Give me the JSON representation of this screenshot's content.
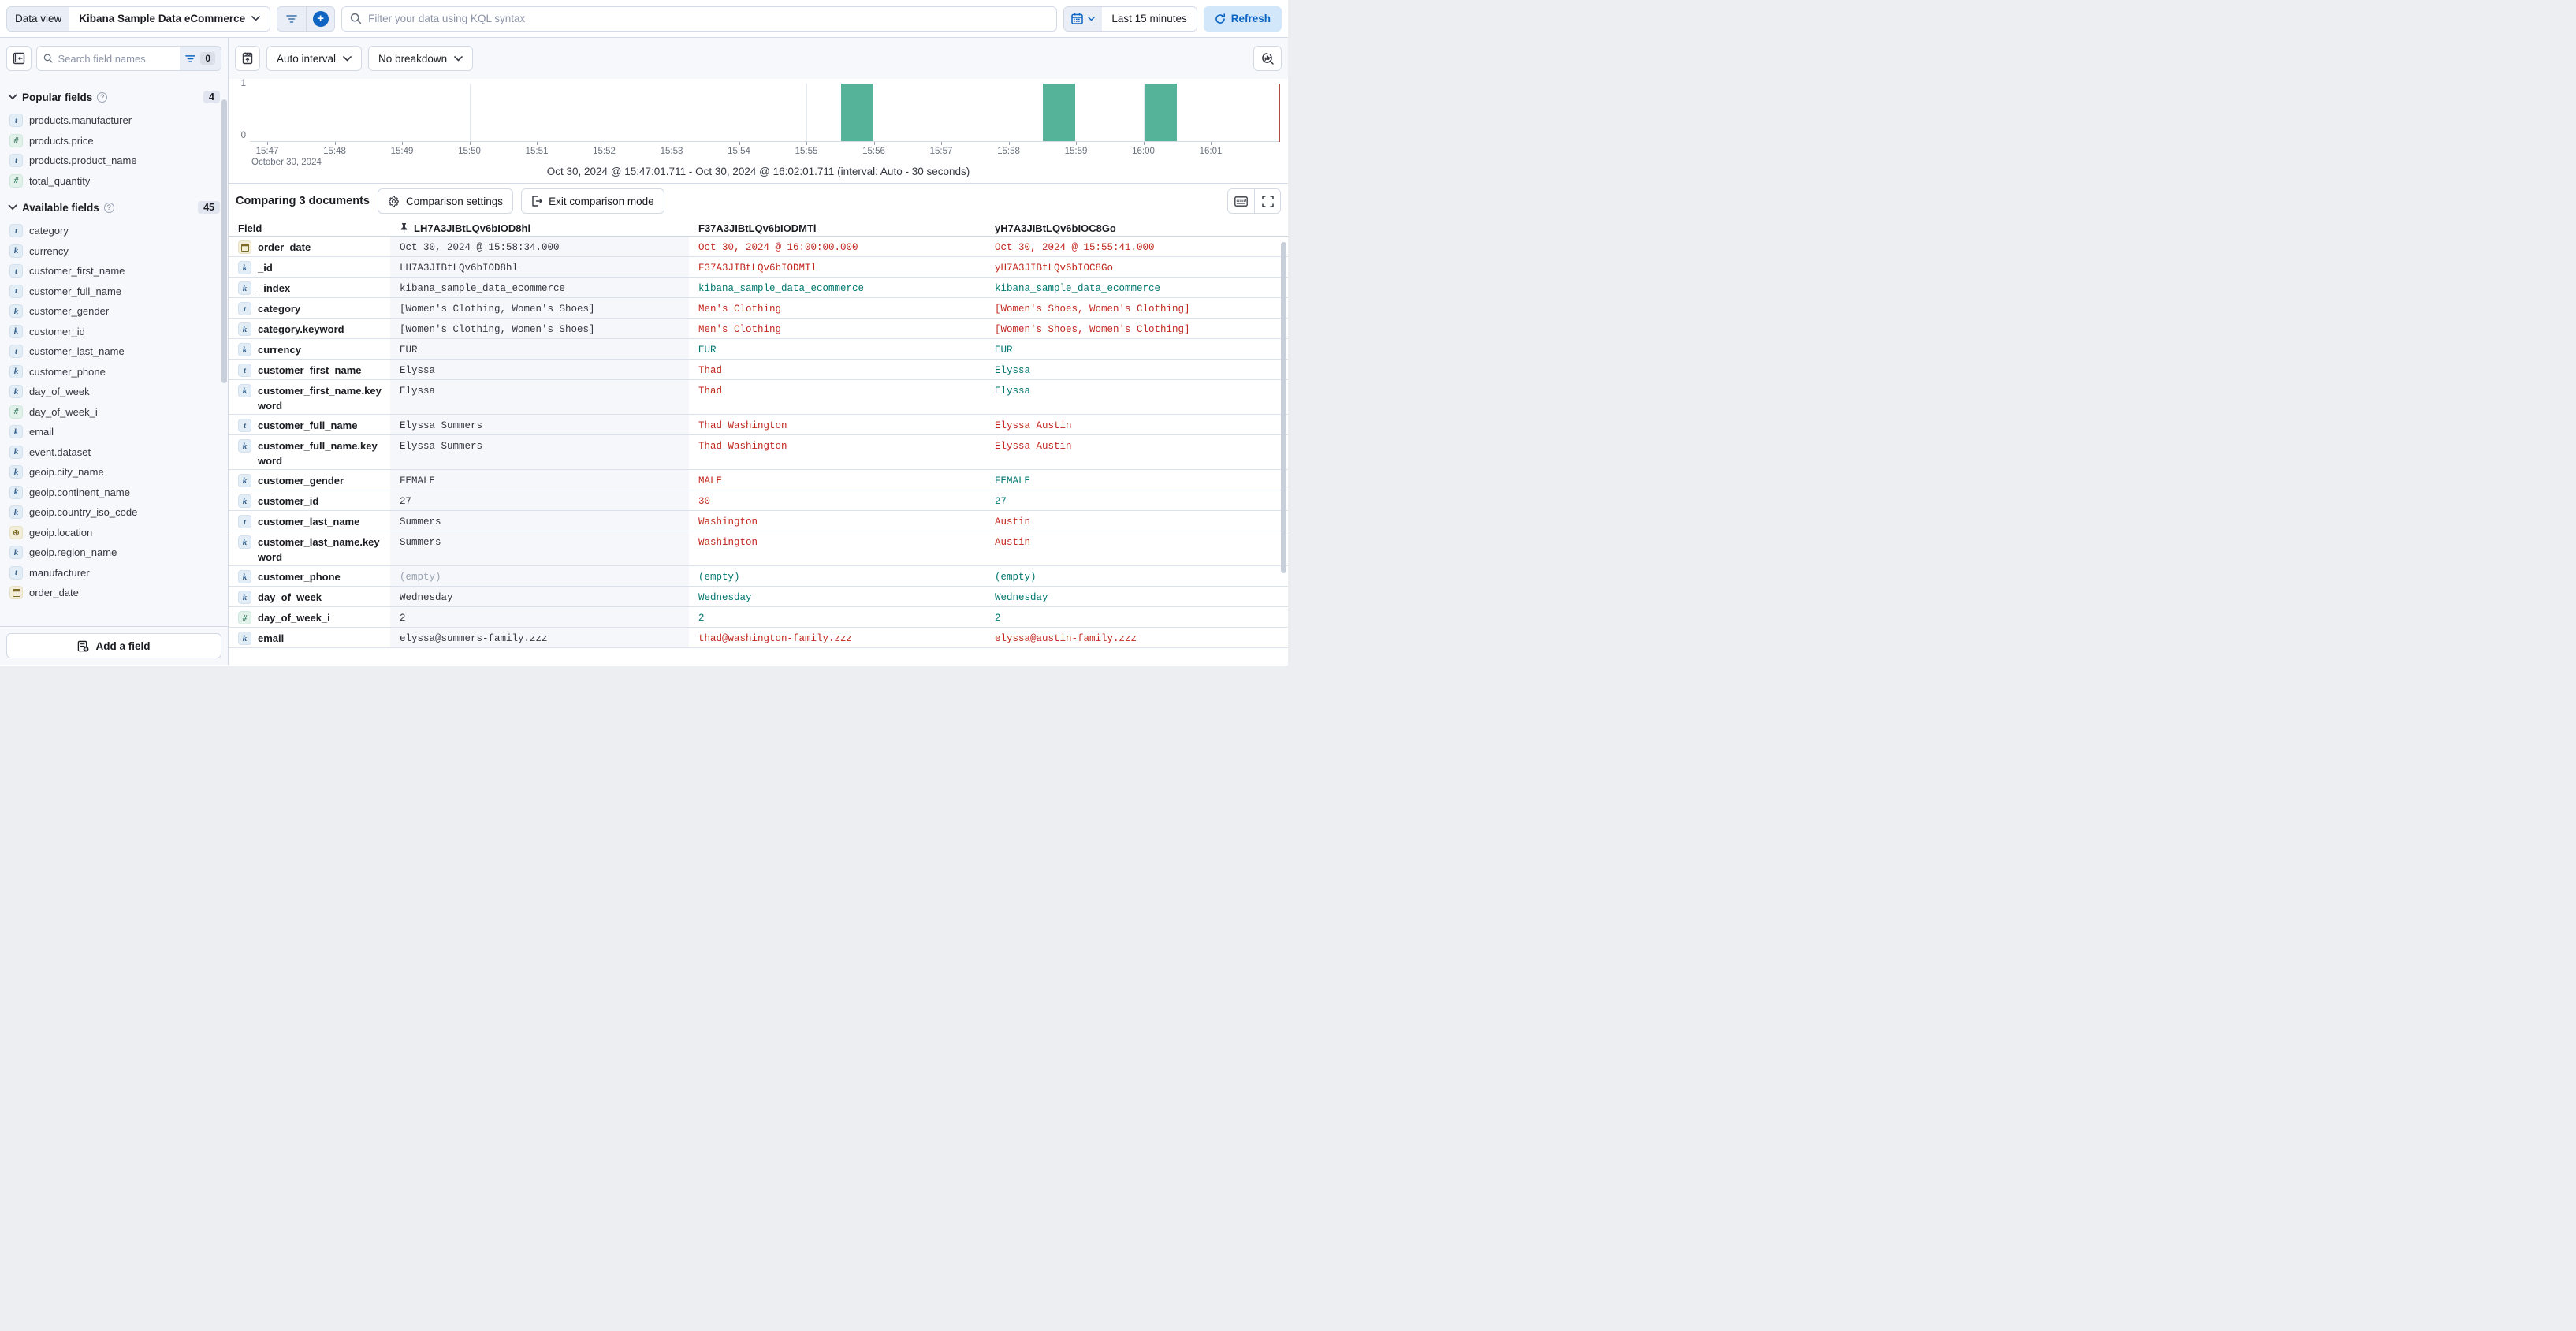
{
  "top_bar": {
    "data_view_label": "Data view",
    "data_view_value": "Kibana Sample Data eCommerce",
    "kql_placeholder": "Filter your data using KQL syntax",
    "time_range": "Last 15 minutes",
    "refresh_label": "Refresh"
  },
  "sidebar": {
    "search_placeholder": "Search field names",
    "filter_count": "0",
    "sections": [
      {
        "label": "Popular fields",
        "count": "4",
        "items": [
          {
            "name": "products.manufacturer",
            "type": "t"
          },
          {
            "name": "products.price",
            "type": "num"
          },
          {
            "name": "products.product_name",
            "type": "t"
          },
          {
            "name": "total_quantity",
            "type": "num"
          }
        ]
      },
      {
        "label": "Available fields",
        "count": "45",
        "items": [
          {
            "name": "category",
            "type": "t"
          },
          {
            "name": "currency",
            "type": "k"
          },
          {
            "name": "customer_first_name",
            "type": "t"
          },
          {
            "name": "customer_full_name",
            "type": "t"
          },
          {
            "name": "customer_gender",
            "type": "k"
          },
          {
            "name": "customer_id",
            "type": "k"
          },
          {
            "name": "customer_last_name",
            "type": "t"
          },
          {
            "name": "customer_phone",
            "type": "k"
          },
          {
            "name": "day_of_week",
            "type": "k"
          },
          {
            "name": "day_of_week_i",
            "type": "num"
          },
          {
            "name": "email",
            "type": "k"
          },
          {
            "name": "event.dataset",
            "type": "k"
          },
          {
            "name": "geoip.city_name",
            "type": "k"
          },
          {
            "name": "geoip.continent_name",
            "type": "k"
          },
          {
            "name": "geoip.country_iso_code",
            "type": "k"
          },
          {
            "name": "geoip.location",
            "type": "geo"
          },
          {
            "name": "geoip.region_name",
            "type": "k"
          },
          {
            "name": "manufacturer",
            "type": "t"
          },
          {
            "name": "order_date",
            "type": "date"
          }
        ]
      }
    ],
    "add_field_label": "Add a field"
  },
  "chart": {
    "interval_label": "Auto interval",
    "breakdown_label": "No breakdown",
    "y_ticks": [
      "1",
      "0"
    ],
    "x_ticks": [
      "15:47",
      "15:48",
      "15:49",
      "15:50",
      "15:51",
      "15:52",
      "15:53",
      "15:54",
      "15:55",
      "15:56",
      "15:57",
      "15:58",
      "15:59",
      "16:00",
      "16:01"
    ],
    "x_date_label": "October 30, 2024",
    "gridline_ticks": [
      "15:50",
      "15:55",
      "16:00"
    ],
    "caption": "Oct 30, 2024 @ 15:47:01.711 - Oct 30, 2024 @ 16:02:01.711 (interval: Auto - 30 seconds)"
  },
  "chart_data": {
    "type": "bar",
    "title": "Document count histogram",
    "x_range": [
      "15:47:00",
      "16:02:00"
    ],
    "interval_seconds": 30,
    "ylim": [
      0,
      1
    ],
    "buckets": [
      {
        "time": "15:55:30",
        "count": 1
      },
      {
        "time": "15:58:30",
        "count": 1
      },
      {
        "time": "16:00:00",
        "count": 1
      }
    ],
    "bar_color": "#54b399",
    "end_marker_time": "16:02:00",
    "end_marker_color": "#ad4a45"
  },
  "comparison": {
    "title": "Comparing 3 documents",
    "settings_label": "Comparison settings",
    "exit_label": "Exit comparison mode"
  },
  "table": {
    "field_header": "Field",
    "doc_headers": [
      {
        "id": "LH7A3JIBtLQv6bIOD8hl",
        "pinned": true
      },
      {
        "id": "F37A3JIBtLQv6bIODMTl",
        "pinned": false
      },
      {
        "id": "yH7A3JIBtLQv6bIOC8Go",
        "pinned": false
      }
    ],
    "rows": [
      {
        "field": "order_date",
        "type": "date",
        "wrap": false,
        "cells": [
          {
            "text": "Oct 30, 2024 @ 15:58:34.000",
            "status": "base"
          },
          {
            "text": "Oct 30, 2024 @ 16:00:00.000",
            "status": "diff"
          },
          {
            "text": "Oct 30, 2024 @ 15:55:41.000",
            "status": "diff"
          }
        ]
      },
      {
        "field": "_id",
        "type": "k",
        "wrap": false,
        "cells": [
          {
            "text": "LH7A3JIBtLQv6bIOD8hl",
            "status": "base"
          },
          {
            "text": "F37A3JIBtLQv6bIODMTl",
            "status": "diff"
          },
          {
            "text": "yH7A3JIBtLQv6bIOC8Go",
            "status": "diff"
          }
        ]
      },
      {
        "field": "_index",
        "type": "k",
        "wrap": false,
        "cells": [
          {
            "text": "kibana_sample_data_ecommerce",
            "status": "base"
          },
          {
            "text": "kibana_sample_data_ecommerce",
            "status": "match"
          },
          {
            "text": "kibana_sample_data_ecommerce",
            "status": "match"
          }
        ]
      },
      {
        "field": "category",
        "type": "t",
        "wrap": false,
        "cells": [
          {
            "text": "[Women's Clothing, Women's Shoes]",
            "status": "base"
          },
          {
            "text": "Men's Clothing",
            "status": "diff"
          },
          {
            "text": "[Women's Shoes, Women's Clothing]",
            "status": "diff"
          }
        ]
      },
      {
        "field": "category.keyword",
        "type": "k",
        "wrap": false,
        "cells": [
          {
            "text": "[Women's Clothing, Women's Shoes]",
            "status": "base"
          },
          {
            "text": "Men's Clothing",
            "status": "diff"
          },
          {
            "text": "[Women's Shoes, Women's Clothing]",
            "status": "diff"
          }
        ]
      },
      {
        "field": "currency",
        "type": "k",
        "wrap": false,
        "cells": [
          {
            "text": "EUR",
            "status": "base"
          },
          {
            "text": "EUR",
            "status": "match"
          },
          {
            "text": "EUR",
            "status": "match"
          }
        ]
      },
      {
        "field": "customer_first_name",
        "type": "t",
        "wrap": false,
        "cells": [
          {
            "text": "Elyssa",
            "status": "base"
          },
          {
            "text": "Thad",
            "status": "diff"
          },
          {
            "text": "Elyssa",
            "status": "match"
          }
        ]
      },
      {
        "field": "customer_first_name.keyword",
        "type": "k",
        "wrap": true,
        "cells": [
          {
            "text": "Elyssa",
            "status": "base"
          },
          {
            "text": "Thad",
            "status": "diff"
          },
          {
            "text": "Elyssa",
            "status": "match"
          }
        ]
      },
      {
        "field": "customer_full_name",
        "type": "t",
        "wrap": false,
        "cells": [
          {
            "text": "Elyssa Summers",
            "status": "base"
          },
          {
            "text": "Thad Washington",
            "status": "diff"
          },
          {
            "text": "Elyssa Austin",
            "status": "diff"
          }
        ]
      },
      {
        "field": "customer_full_name.keyword",
        "type": "k",
        "wrap": true,
        "cells": [
          {
            "text": "Elyssa Summers",
            "status": "base"
          },
          {
            "text": "Thad Washington",
            "status": "diff"
          },
          {
            "text": "Elyssa Austin",
            "status": "diff"
          }
        ]
      },
      {
        "field": "customer_gender",
        "type": "k",
        "wrap": false,
        "cells": [
          {
            "text": "FEMALE",
            "status": "base"
          },
          {
            "text": "MALE",
            "status": "diff"
          },
          {
            "text": "FEMALE",
            "status": "match"
          }
        ]
      },
      {
        "field": "customer_id",
        "type": "k",
        "wrap": false,
        "cells": [
          {
            "text": "27",
            "status": "base"
          },
          {
            "text": "30",
            "status": "diff"
          },
          {
            "text": "27",
            "status": "match"
          }
        ]
      },
      {
        "field": "customer_last_name",
        "type": "t",
        "wrap": false,
        "cells": [
          {
            "text": "Summers",
            "status": "base"
          },
          {
            "text": "Washington",
            "status": "diff"
          },
          {
            "text": "Austin",
            "status": "diff"
          }
        ]
      },
      {
        "field": "customer_last_name.keyword",
        "type": "k",
        "wrap": true,
        "cells": [
          {
            "text": "Summers",
            "status": "base"
          },
          {
            "text": "Washington",
            "status": "diff"
          },
          {
            "text": "Austin",
            "status": "diff"
          }
        ]
      },
      {
        "field": "customer_phone",
        "type": "k",
        "wrap": false,
        "cells": [
          {
            "text": "(empty)",
            "status": "empty"
          },
          {
            "text": "(empty)",
            "status": "match"
          },
          {
            "text": "(empty)",
            "status": "match"
          }
        ]
      },
      {
        "field": "day_of_week",
        "type": "k",
        "wrap": false,
        "cells": [
          {
            "text": "Wednesday",
            "status": "base"
          },
          {
            "text": "Wednesday",
            "status": "match"
          },
          {
            "text": "Wednesday",
            "status": "match"
          }
        ]
      },
      {
        "field": "day_of_week_i",
        "type": "num",
        "wrap": false,
        "cells": [
          {
            "text": "2",
            "status": "base"
          },
          {
            "text": "2",
            "status": "match"
          },
          {
            "text": "2",
            "status": "match"
          }
        ]
      },
      {
        "field": "email",
        "type": "k",
        "wrap": false,
        "cells": [
          {
            "text": "elyssa@summers-family.zzz",
            "status": "base"
          },
          {
            "text": "thad@washington-family.zzz",
            "status": "diff"
          },
          {
            "text": "elyssa@austin-family.zzz",
            "status": "diff"
          }
        ]
      }
    ]
  }
}
